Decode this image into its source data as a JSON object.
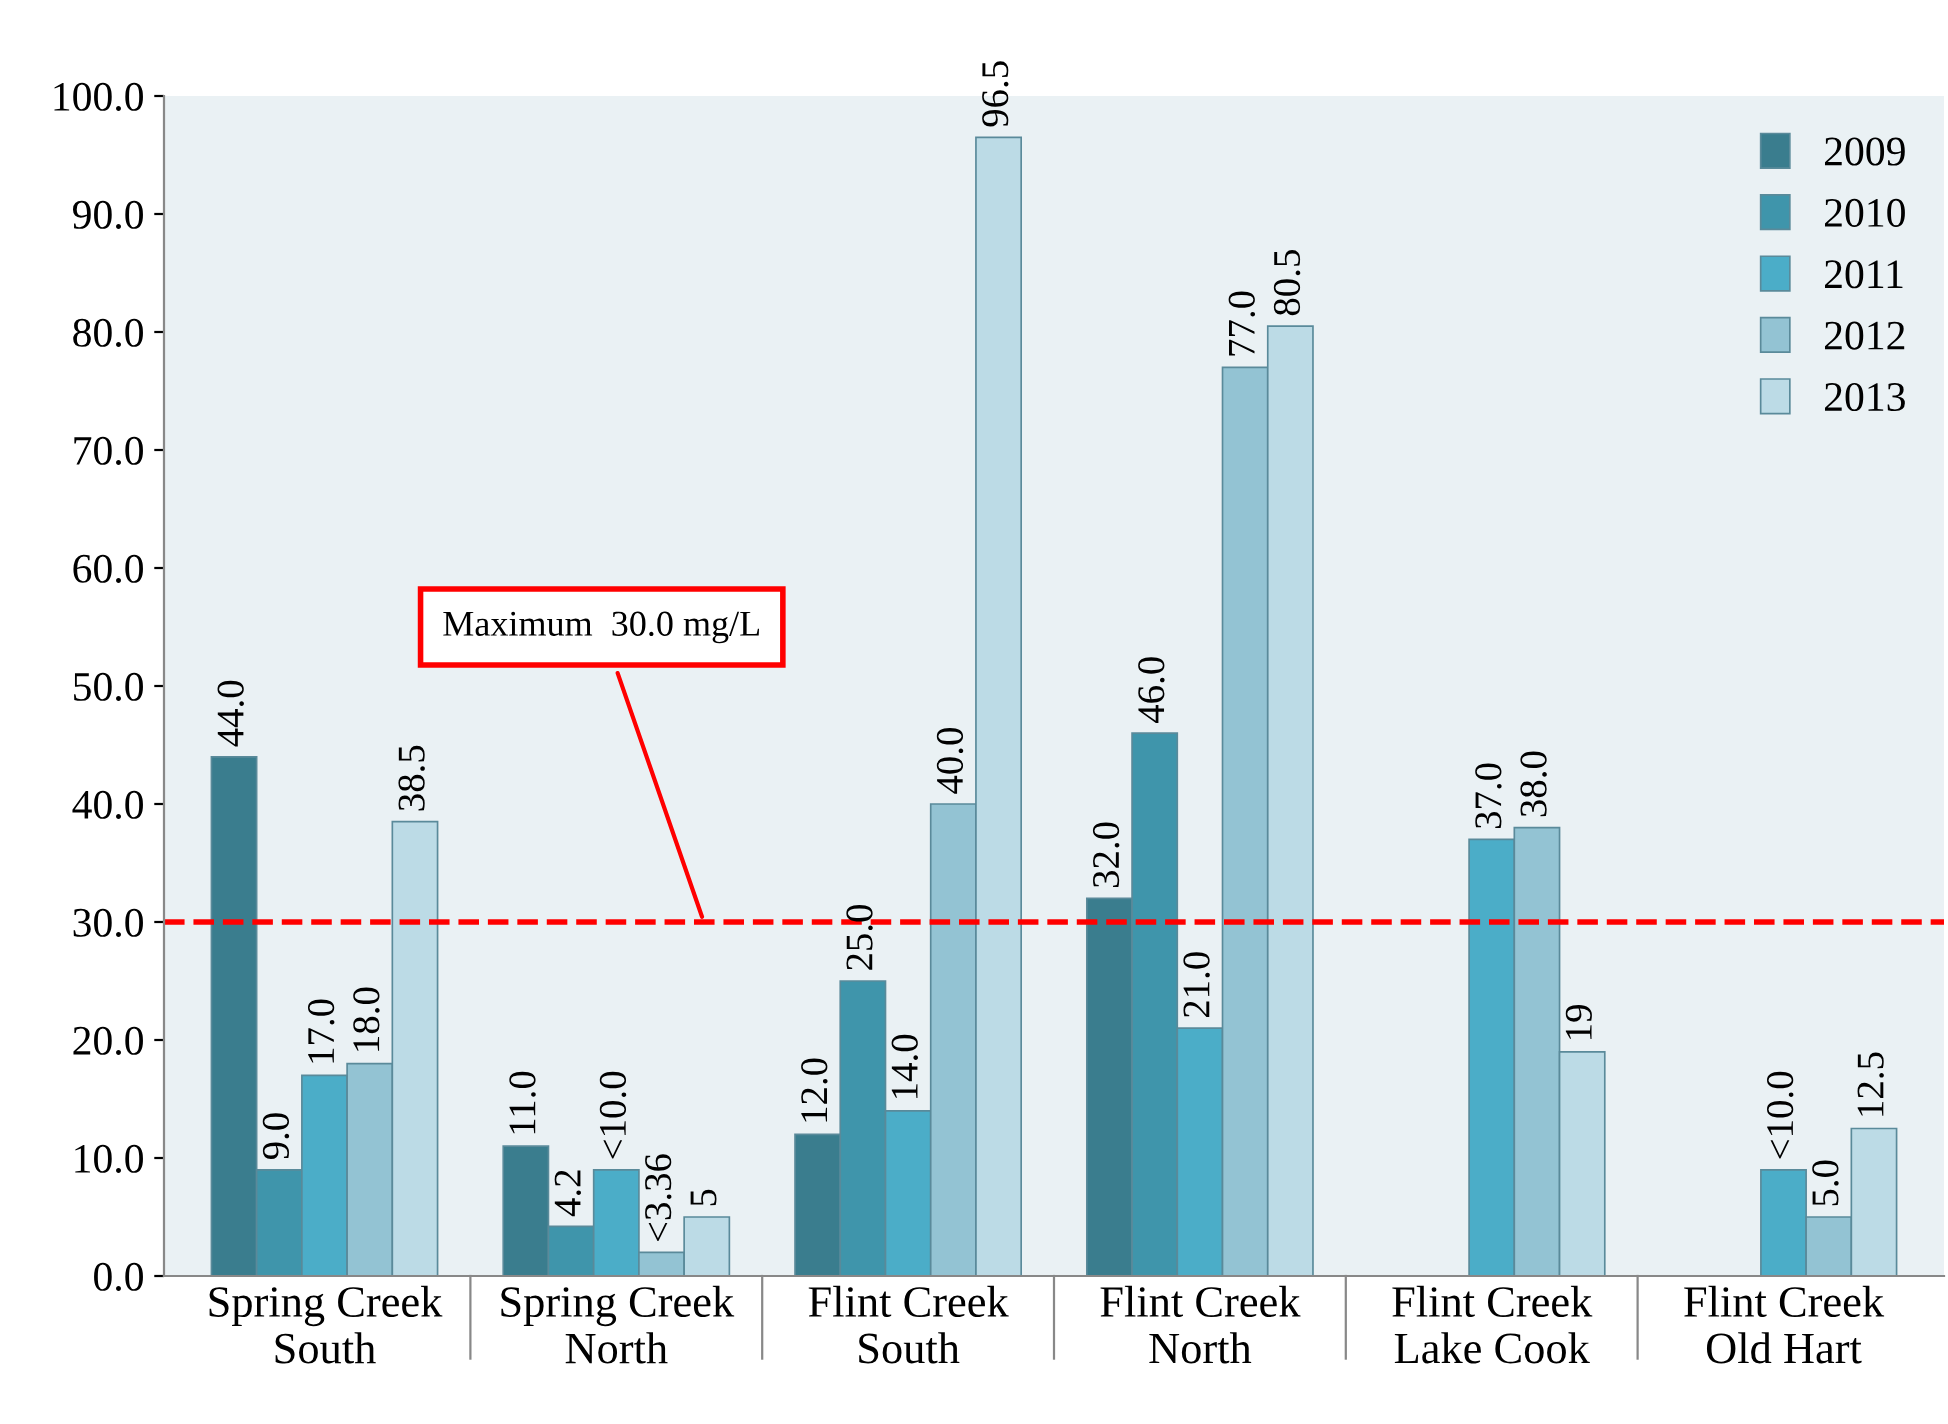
{
  "chart_data": {
    "type": "bar",
    "categories": [
      "Spring Creek\nSouth",
      "Spring Creek\nNorth",
      "Flint Creek\nSouth",
      "Flint Creek\nNorth",
      "Flint Creek\nLake Cook",
      "Flint Creek\nOld Hart"
    ],
    "series": [
      {
        "name": "2009",
        "color": "#3a7d8e",
        "values": [
          44.0,
          11.0,
          12.0,
          32.0,
          null,
          null
        ],
        "value_labels": [
          "44.0",
          "11.0",
          "12.0",
          "32.0",
          null,
          null
        ]
      },
      {
        "name": "2010",
        "color": "#3f95ab",
        "values": [
          9.0,
          4.2,
          25.0,
          46.0,
          null,
          null
        ],
        "value_labels": [
          "9.0",
          "4.2",
          "25.0",
          "46.0",
          null,
          null
        ]
      },
      {
        "name": "2011",
        "color": "#4badc8",
        "values": [
          17.0,
          9.0,
          14.0,
          21.0,
          37.0,
          9.0
        ],
        "value_labels": [
          "17.0",
          "<10.0",
          "14.0",
          "21.0",
          "37.0",
          "<10.0"
        ]
      },
      {
        "name": "2012",
        "color": "#93c3d3",
        "values": [
          18.0,
          2.0,
          40.0,
          77.0,
          38.0,
          5.0
        ],
        "value_labels": [
          "18.0",
          "<3.36",
          "40.0",
          "77.0",
          "38.0",
          "5.0"
        ]
      },
      {
        "name": "2013",
        "color": "#bcdbe6",
        "values": [
          38.5,
          5,
          96.5,
          80.5,
          19,
          12.5
        ],
        "value_labels": [
          "38.5",
          "5",
          "96.5",
          "80.5",
          "19",
          "12.5"
        ]
      }
    ],
    "ylim": [
      0,
      100
    ],
    "yticks": [
      {
        "value": 0,
        "label": "0.0"
      },
      {
        "value": 10,
        "label": "10.0"
      },
      {
        "value": 20,
        "label": "20.0"
      },
      {
        "value": 30,
        "label": "30.0"
      },
      {
        "value": 40,
        "label": "40.0"
      },
      {
        "value": 50,
        "label": "50.0"
      },
      {
        "value": 60,
        "label": "60.0"
      },
      {
        "value": 70,
        "label": "70.0"
      },
      {
        "value": 80,
        "label": "80.0"
      },
      {
        "value": 90,
        "label": "90.0"
      },
      {
        "value": 100,
        "label": "100.0"
      }
    ],
    "ref_lines": [
      {
        "axis": "y",
        "value": 30,
        "label": "Maximum  30.0 mg/L",
        "color": "#ff0000",
        "line_style": "dashed"
      }
    ],
    "legend": "top right",
    "grid": false
  }
}
